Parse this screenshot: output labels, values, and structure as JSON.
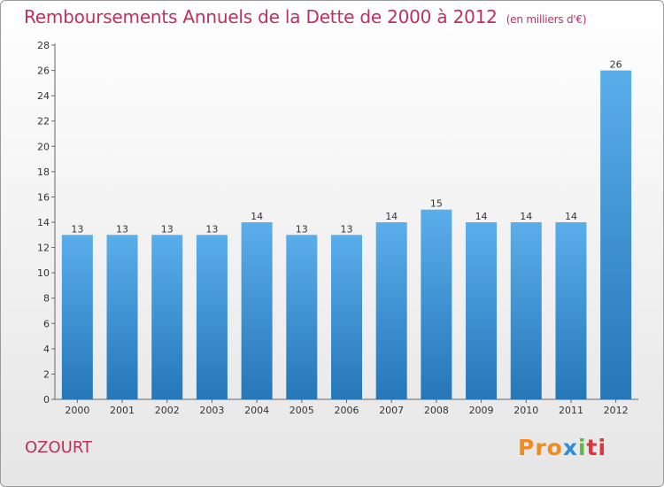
{
  "title": "Remboursements Annuels de la Dette de 2000 à 2012",
  "title_unit": "(en milliers d'€)",
  "commune": "OZOURT",
  "logo": {
    "p1": "Pro",
    "p2": "x",
    "p3": "i",
    "p4": "ti"
  },
  "colors": {
    "title": "#c0305c",
    "bar_light": "#5aaeea",
    "bar_dark": "#2577b8"
  },
  "chart_data": {
    "type": "bar",
    "categories": [
      "2000",
      "2001",
      "2002",
      "2003",
      "2004",
      "2005",
      "2006",
      "2007",
      "2008",
      "2009",
      "2010",
      "2011",
      "2012"
    ],
    "values": [
      13,
      13,
      13,
      13,
      14,
      13,
      13,
      14,
      15,
      14,
      14,
      14,
      26
    ],
    "ylim": [
      0,
      28
    ],
    "yticks": [
      0,
      2,
      4,
      6,
      8,
      10,
      12,
      14,
      16,
      18,
      20,
      22,
      24,
      26,
      28
    ],
    "grid": false
  }
}
